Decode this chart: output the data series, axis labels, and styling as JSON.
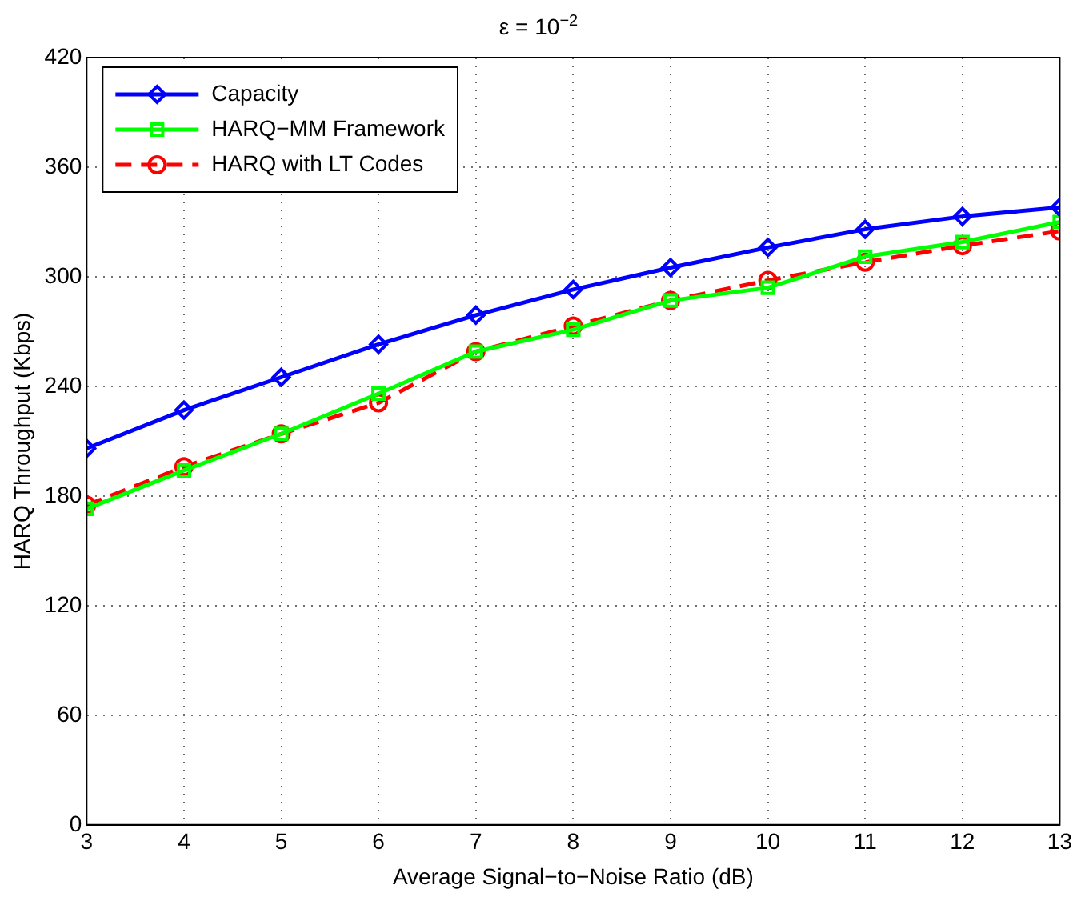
{
  "chart_data": {
    "type": "line",
    "title": "ε = 10$^{−2}$",
    "xlabel": "Average Signal−to−Noise Ratio (dB)",
    "ylabel": "HARQ Throughput (Kbps)",
    "x": [
      3,
      4,
      5,
      6,
      7,
      8,
      9,
      10,
      11,
      12,
      13
    ],
    "xlim": [
      3,
      13
    ],
    "xticks": [
      3,
      4,
      5,
      6,
      7,
      8,
      9,
      10,
      11,
      12,
      13
    ],
    "ylim": [
      0,
      420
    ],
    "yticks": [
      0,
      60,
      120,
      180,
      240,
      300,
      360,
      420
    ],
    "grid": true,
    "legend": "top left",
    "series": [
      {
        "name": "Capacity",
        "color": "#0000ff",
        "marker": "diamond",
        "line_style": "solid",
        "values": [
          206,
          227,
          245,
          263,
          279,
          293,
          305,
          316,
          326,
          333,
          338
        ]
      },
      {
        "name": "HARQ−MM Framework",
        "color": "#00ff00",
        "marker": "square",
        "line_style": "solid",
        "values": [
          173,
          194,
          214,
          236,
          259,
          271,
          287,
          294,
          311,
          319,
          330
        ]
      },
      {
        "name": "HARQ with LT Codes",
        "color": "#ff0000",
        "marker": "circle",
        "line_style": "dashed",
        "values": [
          175,
          196,
          214,
          231,
          259,
          273,
          287,
          298,
          308,
          317,
          325
        ]
      }
    ]
  }
}
